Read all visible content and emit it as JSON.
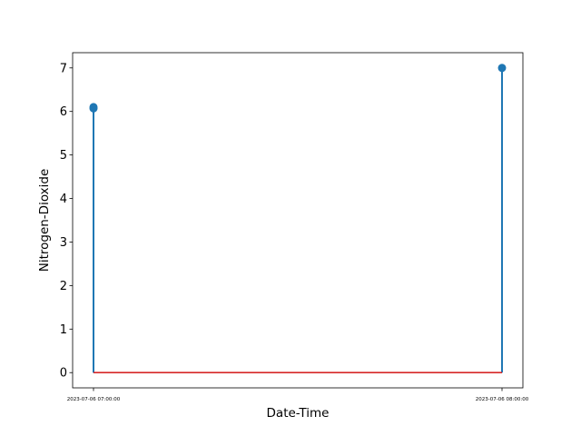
{
  "chart_data": {
    "type": "stem",
    "xlabel": "Date-Time",
    "ylabel": "Nitrogen-Dioxide",
    "x": [
      "2023-07-06 07:00:00",
      "2023-07-06 07:00:00",
      "2023-07-06 08:00:00"
    ],
    "y": [
      6.1,
      6.07,
      7.0
    ],
    "xticks": [
      "2023-07-06 07:00:00",
      "2023-07-06 08:00:00"
    ],
    "yticks": [
      "0",
      "1",
      "2",
      "3",
      "4",
      "5",
      "6",
      "7"
    ],
    "ylim": [
      -0.35,
      7.35
    ],
    "baseline": 0,
    "grid": false,
    "colors": {
      "stem": "#1f77b4",
      "baseline": "#d62728"
    }
  }
}
